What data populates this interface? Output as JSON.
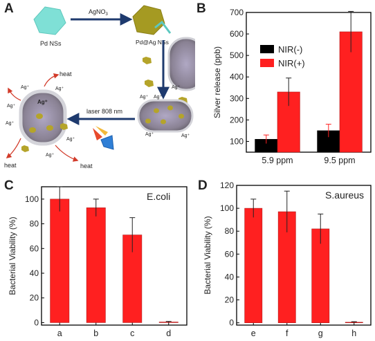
{
  "panel_letters": [
    "A",
    "B",
    "C",
    "D"
  ],
  "schematic": {
    "labels": {
      "pd_nss": "Pd NSs",
      "agno3": "AgNO",
      "agno3_sub": "3",
      "pd_ag_nss": "Pd@Ag NSs",
      "laser": "laser 808 nm",
      "ag_plus": "Ag⁺",
      "heat": "heat"
    }
  },
  "chart_data": [
    {
      "panel": "B",
      "type": "bar",
      "categories": [
        "5.9 ppm",
        "9.5 ppm"
      ],
      "series": [
        {
          "name": "NIR(-)",
          "color": "#000000",
          "values": [
            110,
            150
          ],
          "errors": [
            20,
            30
          ]
        },
        {
          "name": "NIR(+)",
          "color": "#ff2020",
          "values": [
            330,
            610
          ],
          "errors": [
            65,
            95
          ]
        }
      ],
      "ylabel": "Silver release (ppb)",
      "ylim": [
        50,
        700
      ],
      "yticks": [
        100,
        200,
        300,
        400,
        500,
        600,
        700
      ],
      "legend_position": "upper-left"
    },
    {
      "panel": "C",
      "type": "bar",
      "categories": [
        "a",
        "b",
        "c",
        "d"
      ],
      "values": [
        100,
        93,
        71,
        0.5
      ],
      "errors": [
        10,
        7,
        14,
        0.5
      ],
      "color": "#ff2020",
      "annotation": "E.coli",
      "ylabel": "Bacterial Viability (%)",
      "ylim": [
        -2,
        110
      ],
      "yticks": [
        0,
        20,
        40,
        60,
        80,
        100
      ]
    },
    {
      "panel": "D",
      "type": "bar",
      "categories": [
        "e",
        "f",
        "g",
        "h"
      ],
      "values": [
        100,
        97,
        82,
        0.5
      ],
      "errors": [
        8,
        18,
        13,
        0.5
      ],
      "color": "#ff2020",
      "annotation": "S.aureus",
      "ylabel": "Bacterial Viability (%)",
      "ylim": [
        -2,
        120
      ],
      "yticks": [
        0,
        20,
        40,
        60,
        80,
        100,
        120
      ]
    }
  ]
}
